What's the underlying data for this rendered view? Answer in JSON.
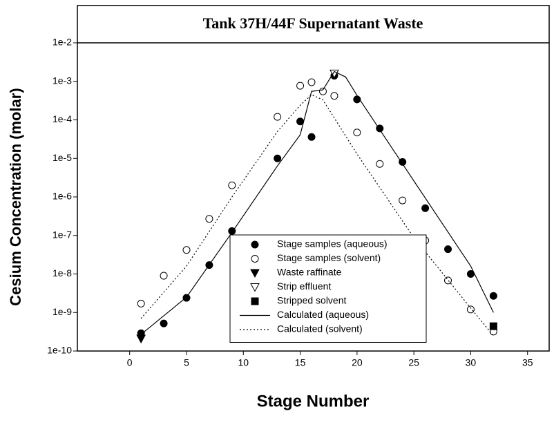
{
  "chart_data": {
    "type": "scatter",
    "title": "Tank 37H/44F Supernatant Waste",
    "x_label": "Stage Number",
    "y_label": "Cesium Concentration (molar)",
    "log_y": true,
    "legend": "lower center",
    "xlim": [
      -4.6,
      36.9
    ],
    "xticks": [
      0,
      5,
      10,
      15,
      20,
      25,
      30,
      35
    ],
    "ylim": [
      1e-10,
      0.01
    ],
    "yticks": [
      {
        "value": 1e-10,
        "label": "1e-10"
      },
      {
        "value": 1e-09,
        "label": "1e-9"
      },
      {
        "value": 1e-08,
        "label": "1e-8"
      },
      {
        "value": 1e-07,
        "label": "1e-7"
      },
      {
        "value": 1e-06,
        "label": "1e-6"
      },
      {
        "value": 1e-05,
        "label": "1e-5"
      },
      {
        "value": 0.0001,
        "label": "1e-4"
      },
      {
        "value": 0.001,
        "label": "1e-3"
      },
      {
        "value": 0.01,
        "label": "1e-2"
      }
    ],
    "series": [
      {
        "name": "Stage samples (aqueous)",
        "color": "#000000",
        "marker": "circle",
        "filled": true,
        "x": [
          1,
          3,
          5,
          7,
          9,
          13,
          15,
          16,
          18,
          20,
          22,
          24,
          26,
          28,
          30,
          32
        ],
        "values": [
          2.9e-10,
          5.2e-10,
          2.4e-09,
          1.7e-08,
          1.3e-07,
          1e-05,
          9.1e-05,
          3.6e-05,
          0.0014,
          0.00034,
          6e-05,
          8.1e-06,
          5.1e-07,
          4.4e-08,
          1e-08,
          2.7e-09
        ]
      },
      {
        "name": "Stage samples (solvent)",
        "color": "#000000",
        "marker": "circle",
        "filled": false,
        "x": [
          1,
          3,
          5,
          7,
          9,
          13,
          15,
          16,
          17,
          18,
          20,
          22,
          24,
          26,
          28,
          30,
          32
        ],
        "values": [
          1.7e-09,
          9e-09,
          4.2e-08,
          2.7e-07,
          2e-06,
          0.00012,
          0.00077,
          0.00095,
          0.00055,
          0.00042,
          4.7e-05,
          7.2e-06,
          8.1e-07,
          7.4e-08,
          6.8e-09,
          1.2e-09,
          3.2e-10
        ]
      },
      {
        "name": "Waste raffinate",
        "color": "#000000",
        "marker": "triangle-down",
        "filled": true,
        "x": [
          1
        ],
        "values": [
          2.1e-10
        ]
      },
      {
        "name": "Strip effluent",
        "color": "#000000",
        "marker": "triangle-down",
        "filled": false,
        "x": [
          18
        ],
        "values": [
          0.0016
        ]
      },
      {
        "name": "Stripped solvent",
        "color": "#000000",
        "marker": "square",
        "filled": true,
        "x": [
          32
        ],
        "values": [
          4.4e-10
        ]
      },
      {
        "name": "Calculated (aqueous)",
        "color": "#000000",
        "line": "solid",
        "x": [
          1,
          5,
          9,
          13,
          15,
          16,
          17,
          18,
          19,
          20,
          25,
          30,
          32
        ],
        "values": [
          2.7e-10,
          2.5e-09,
          1.2e-07,
          6.4e-06,
          4.1e-05,
          0.00055,
          0.0006,
          0.0018,
          0.0013,
          0.00043,
          2.6e-06,
          1.6e-08,
          1e-09
        ]
      },
      {
        "name": "Calculated (solvent)",
        "color": "#000000",
        "line": "dotted",
        "x": [
          1,
          5,
          9,
          13,
          15,
          16,
          17,
          20,
          25,
          30,
          32
        ],
        "values": [
          7e-10,
          1.6e-08,
          1e-06,
          5e-05,
          0.00024,
          0.00045,
          0.00033,
          1.3e-05,
          8.7e-08,
          1.3e-09,
          2.5e-10
        ]
      }
    ]
  }
}
